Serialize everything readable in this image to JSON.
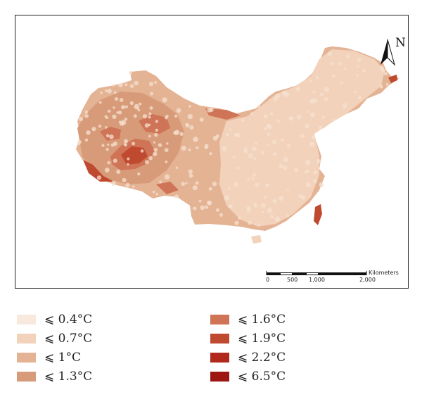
{
  "map": {
    "north_label": "N",
    "scale_bar": {
      "ticks": [
        "0",
        "500",
        "1,000",
        "2,000"
      ],
      "unit": "Kilometers"
    }
  },
  "legend": {
    "items": [
      {
        "label": "⩽ 0.4°C",
        "color": "#f9e8dc"
      },
      {
        "label": "⩽ 0.7°C",
        "color": "#f2d2bb"
      },
      {
        "label": "⩽ 1°C",
        "color": "#e4b394"
      },
      {
        "label": "⩽ 1.3°C",
        "color": "#d89b7a"
      },
      {
        "label": "⩽ 1.6°C",
        "color": "#cf7456"
      },
      {
        "label": "⩽ 1.9°C",
        "color": "#c04a30"
      },
      {
        "label": "⩽ 2.2°C",
        "color": "#b1281d"
      },
      {
        "label": "⩽ 6.5°C",
        "color": "#9e1611"
      }
    ]
  }
}
